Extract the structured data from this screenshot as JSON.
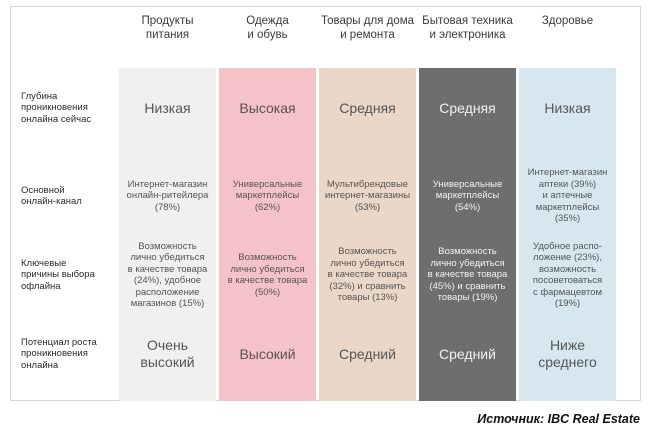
{
  "columns": [
    {
      "header": "Продукты\nпитания",
      "bg": "#f1f0ee",
      "fg": "#555555",
      "depth": "Низкая",
      "channel": "Интернет-магазин\nонлайн-ритейлера\n(78%)",
      "reasons": "Возможность\nлично убедиться\nв качестве товара\n(24%), удобное\nрасположение\nмагазинов (15%)",
      "potential": "Очень\nвысокий"
    },
    {
      "header": "Одежда\nи обувь",
      "bg": "#f5c3c7",
      "fg": "#555555",
      "depth": "Высокая",
      "channel": "Универсальные\nмаркетплейсы\n(62%)",
      "reasons": "Возможность\nлично убедиться\nв качестве товара\n(50%)",
      "potential": "Высокий"
    },
    {
      "header": "Товары для дома\nи ремонта",
      "bg": "#ead7c8",
      "fg": "#555555",
      "depth": "Средняя",
      "channel": "Мультибрендовые\nинтернет-магазины\n(53%)",
      "reasons": "Возможность\nлично убедиться\nв качестве товара\n(32%) и сравнить\nтовары (13%)",
      "potential": "Средний"
    },
    {
      "header": "Бытовая техника\nи электроника",
      "bg": "#6f6e6e",
      "fg": "#f2f2f2",
      "depth": "Средняя",
      "channel": "Универсальные\nмаркетплейсы\n(54%)",
      "reasons": "Возможность\nлично убедиться\nв качестве товара\n(45%) и сравнить\nтовары (19%)",
      "potential": "Средний"
    },
    {
      "header": "Здоровье",
      "bg": "#d6e7ef",
      "fg": "#555555",
      "depth": "Низкая",
      "channel": "Интернет-магазин\nаптеки (39%)\nи аптечные\nмаркетплейсы\n(35%)",
      "reasons": "Удобное распо-\nложение (23%),\nвозможность\nпосоветоваться\nс фармацевтом\n(19%)",
      "potential": "Ниже\nсреднего"
    }
  ],
  "rows": [
    {
      "label": "Глубина\nпроникновения\nонлайна сейчас"
    },
    {
      "label": "Основной\nонлайн-канал"
    },
    {
      "label": "Ключевые\nпричины выбора\nофлайна"
    },
    {
      "label": "Потенциал роста\nпроникновения\nонлайна"
    }
  ],
  "source": "Источник: IBC Real Estate"
}
